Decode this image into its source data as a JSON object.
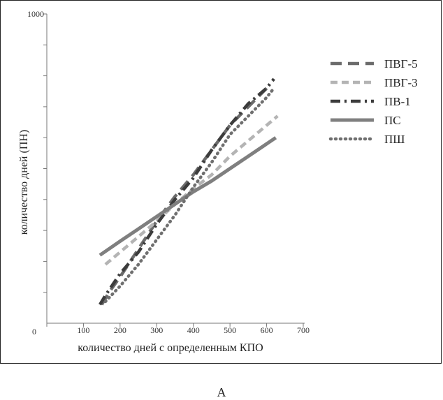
{
  "panel_label": "А",
  "chart_data": {
    "type": "line",
    "title": "",
    "xlabel": "количество дней с определенным КПО",
    "ylabel": "количество дней (ПН)",
    "xlim": [
      0,
      700
    ],
    "ylim": [
      0,
      1000
    ],
    "x_ticks": [
      0,
      100,
      200,
      300,
      400,
      500,
      600,
      700
    ],
    "y_ticks": [
      1000
    ],
    "y_minor_ticks": [
      100,
      200,
      300,
      400,
      500,
      600,
      700,
      800,
      900
    ],
    "grid": false,
    "legend_position": "right",
    "series": [
      {
        "name": "ПВГ-5",
        "style": "long-dash",
        "color": "#6b6b6b",
        "x": [
          150,
          170,
          200,
          250,
          300,
          350,
          400,
          450,
          500,
          550,
          600
        ],
        "y": [
          60,
          100,
          150,
          240,
          330,
          410,
          480,
          560,
          640,
          700,
          760
        ]
      },
      {
        "name": "ПВГ-3",
        "style": "dash",
        "color": "#b4b4b4",
        "x": [
          160,
          200,
          250,
          300,
          350,
          400,
          450,
          500,
          550,
          600,
          630
        ],
        "y": [
          190,
          230,
          280,
          330,
          385,
          435,
          480,
          540,
          590,
          640,
          670
        ]
      },
      {
        "name": "ПВ-1",
        "style": "dash-dot",
        "color": "#3c3c3c",
        "x": [
          145,
          160,
          200,
          250,
          300,
          350,
          400,
          450,
          500,
          550,
          600,
          620
        ],
        "y": [
          60,
          90,
          160,
          230,
          320,
          400,
          470,
          560,
          640,
          710,
          760,
          790
        ]
      },
      {
        "name": "ПС",
        "style": "solid",
        "color": "#7f7f7f",
        "x": [
          145,
          200,
          250,
          300,
          350,
          400,
          450,
          500,
          550,
          600,
          625
        ],
        "y": [
          220,
          265,
          305,
          345,
          385,
          425,
          460,
          500,
          540,
          580,
          600
        ]
      },
      {
        "name": "ПШ",
        "style": "dotted",
        "color": "#6f6f6f",
        "x": [
          160,
          200,
          250,
          300,
          350,
          400,
          450,
          500,
          550,
          600,
          620
        ],
        "y": [
          70,
          120,
          190,
          270,
          350,
          440,
          520,
          610,
          670,
          730,
          760
        ]
      }
    ]
  }
}
